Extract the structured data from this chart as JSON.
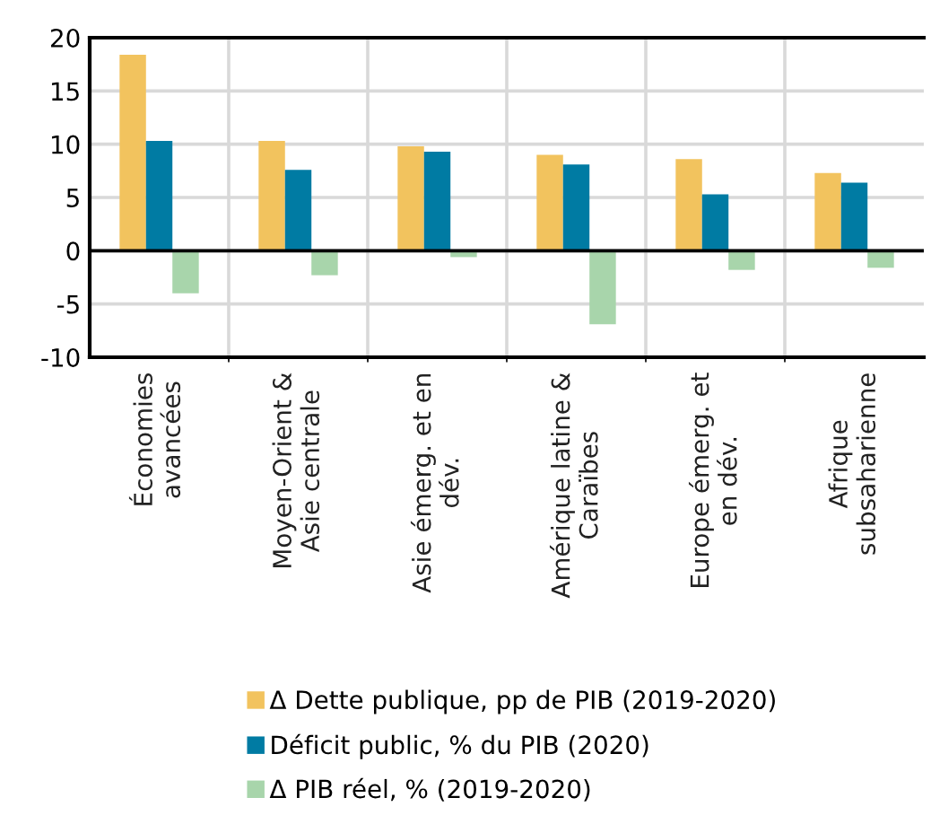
{
  "chart_data": {
    "type": "bar",
    "categories": [
      "Économies\navancées",
      "Moyen-Orient &\nAsie centrale",
      "Asie émerg. et en\ndév.",
      "Amérique latine &\nCaraïbes",
      "Europe émerg. et\nen dév.",
      "Afrique\nsubsaharienne"
    ],
    "series": [
      {
        "name": "Δ Dette publique, pp de PIB (2019-2020)",
        "color": "#f2c35e",
        "values": [
          18.4,
          10.3,
          9.8,
          9.0,
          8.6,
          7.3
        ]
      },
      {
        "name": "Déficit public, % du PIB (2020)",
        "color": "#007ba3",
        "values": [
          10.3,
          7.6,
          9.3,
          8.1,
          5.3,
          6.4
        ]
      },
      {
        "name": "Δ PIB réel, % (2019-2020)",
        "color": "#a8d5ab",
        "values": [
          -4.0,
          -2.3,
          -0.6,
          -6.9,
          -1.8,
          -1.6
        ]
      }
    ],
    "ylim": [
      -10,
      20
    ],
    "yticks": [
      -10,
      -5,
      0,
      5,
      10,
      15,
      20
    ],
    "grid": true,
    "legend": "bottom"
  }
}
